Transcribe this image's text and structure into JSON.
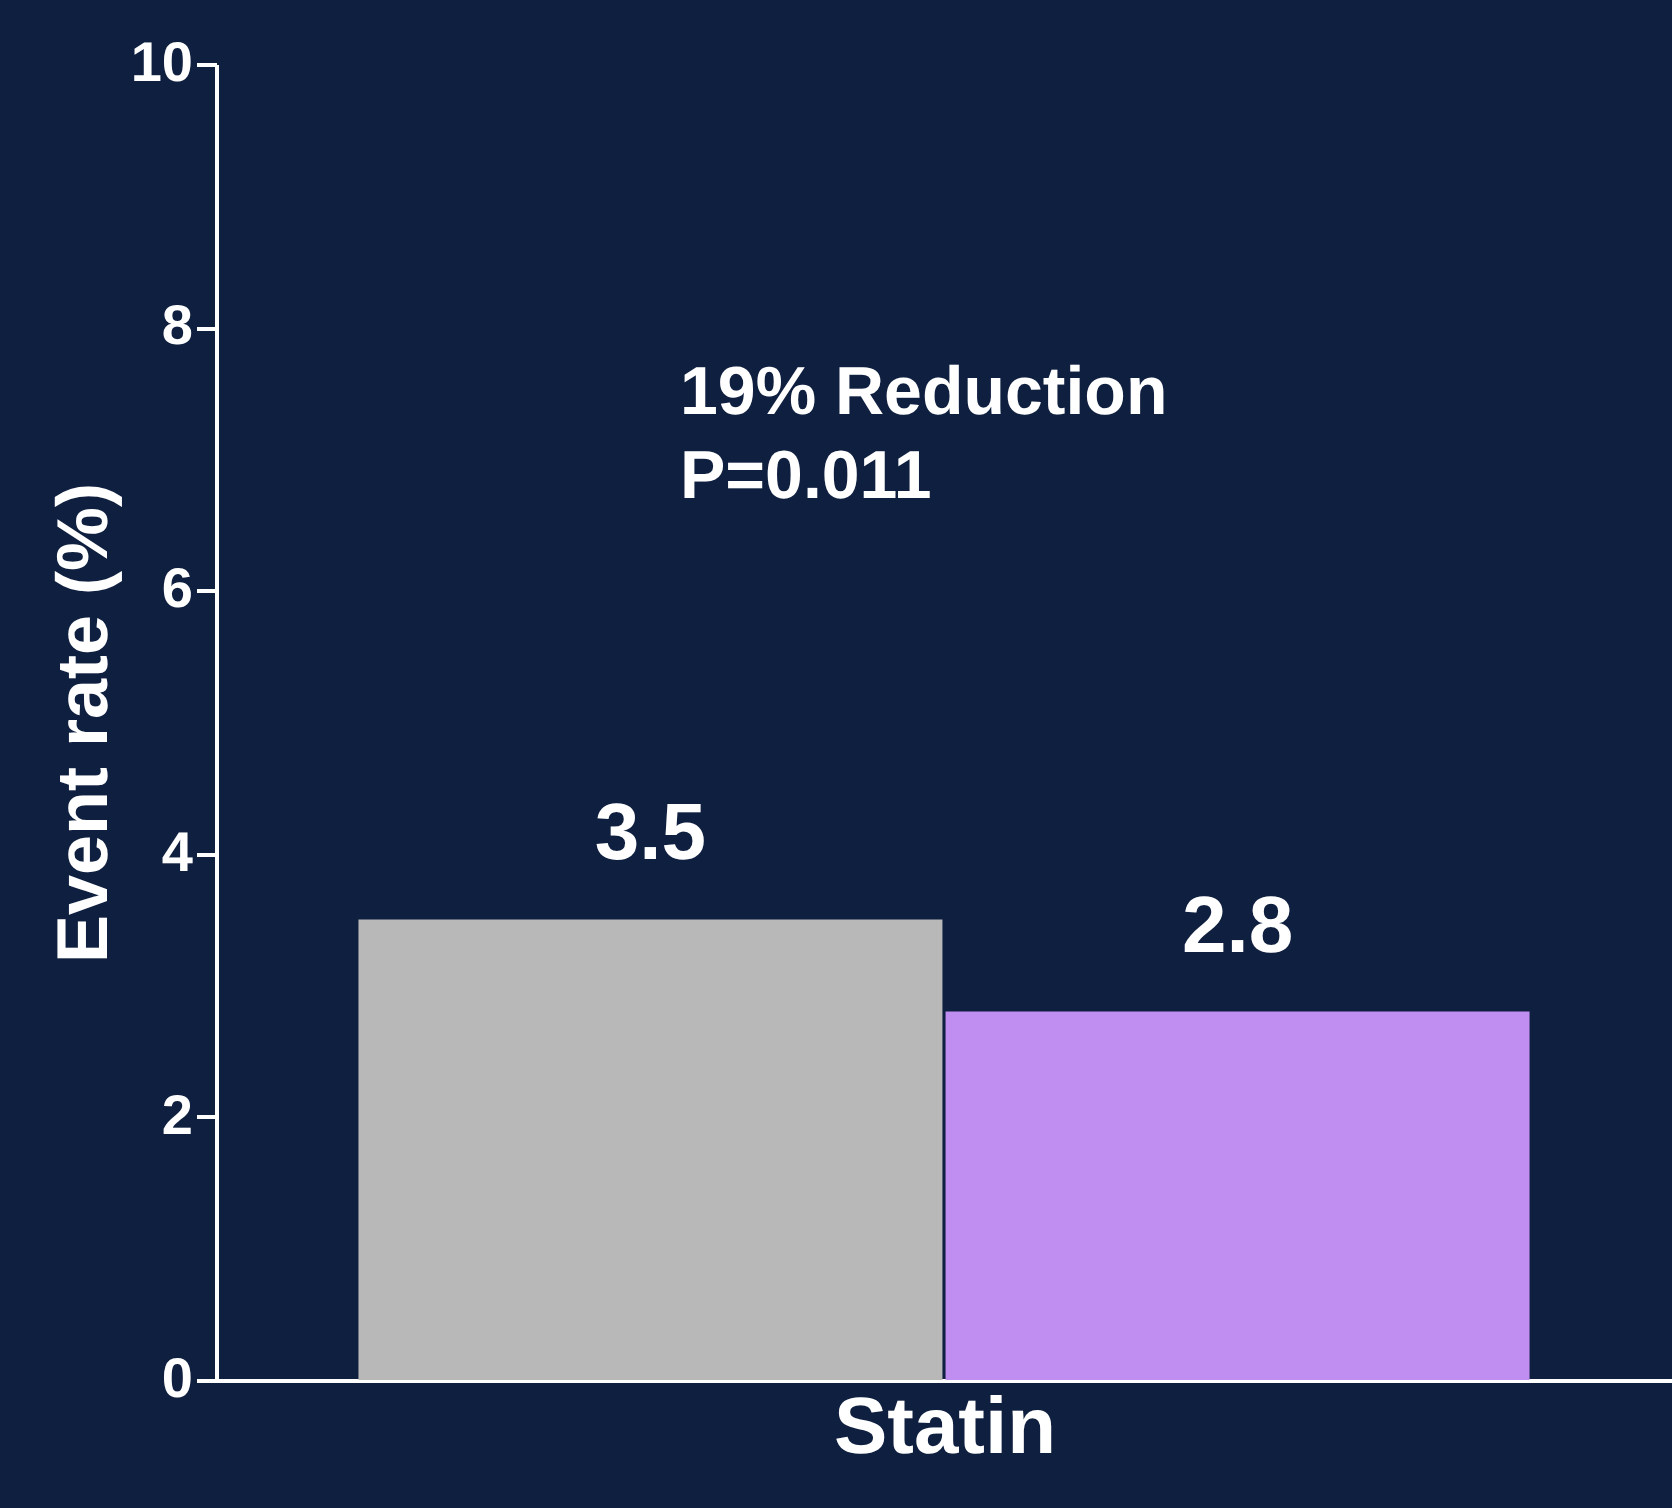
{
  "chart_data": {
    "type": "bar",
    "xlabel": "Statin",
    "ylabel": "Event rate (%)",
    "categories": [
      null,
      null
    ],
    "values": [
      3.5,
      2.8
    ],
    "colors": [
      "#b8b8b8",
      "#c08ef0"
    ],
    "data_labels": true,
    "ylim": [
      0,
      10
    ],
    "yticks": [
      0,
      2,
      4,
      6,
      8,
      10
    ],
    "grid": false,
    "annotations": [
      "19% Reduction\nP=0.011"
    ]
  }
}
